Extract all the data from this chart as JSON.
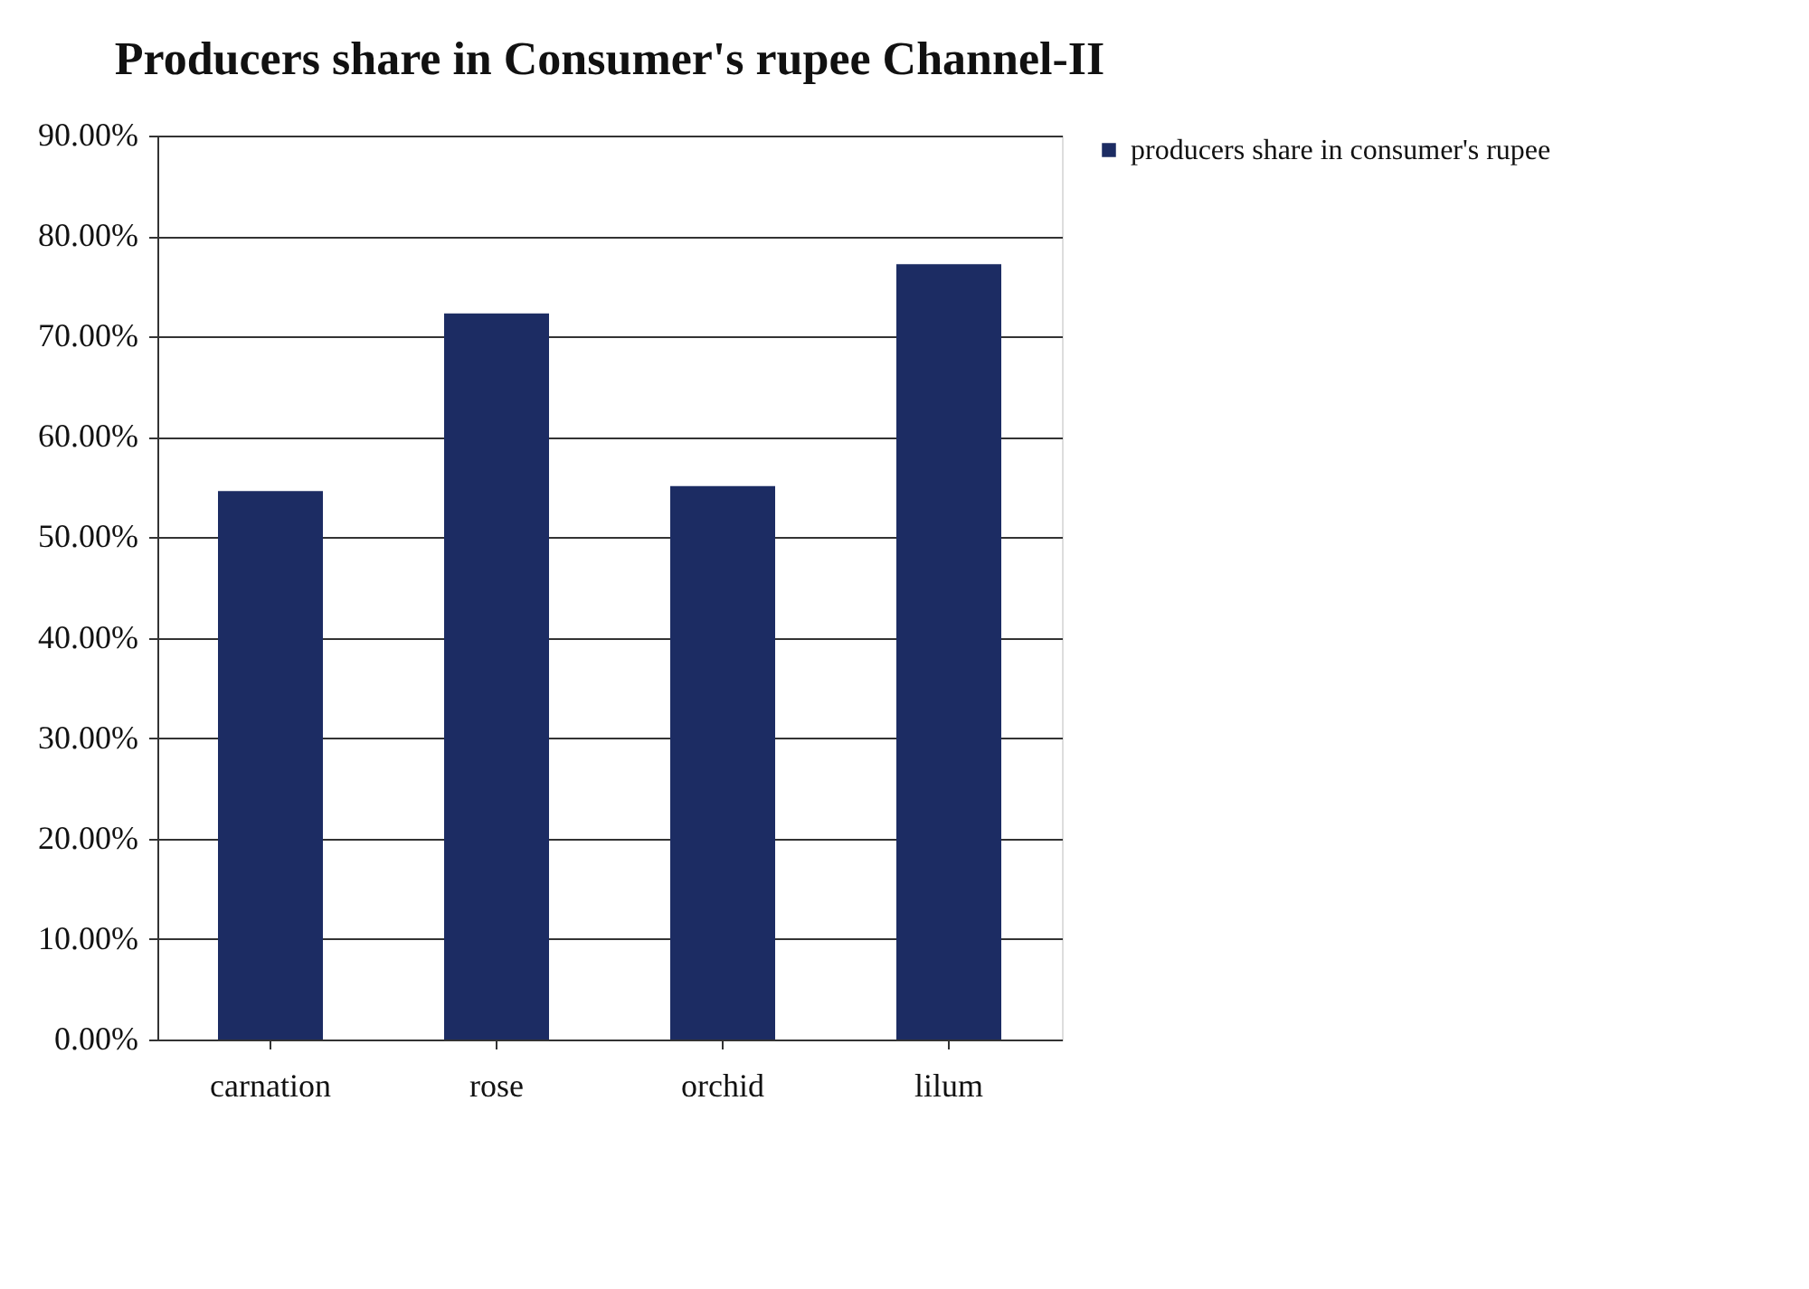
{
  "chart_data": {
    "type": "bar",
    "title": "Producers share in Consumer's rupee Channel-II",
    "categories": [
      "carnation",
      "rose",
      "orchid",
      "lilum"
    ],
    "series": [
      {
        "name": "producers share in consumer's rupee",
        "color": "#1c2c63",
        "values": [
          54.6,
          72.3,
          55.1,
          77.2
        ]
      }
    ],
    "ylim": [
      0,
      90
    ],
    "yticks": [
      {
        "value": 0,
        "label": "0.00%"
      },
      {
        "value": 10,
        "label": "10.00%"
      },
      {
        "value": 20,
        "label": "20.00%"
      },
      {
        "value": 30,
        "label": "30.00%"
      },
      {
        "value": 40,
        "label": "40.00%"
      },
      {
        "value": 50,
        "label": "50.00%"
      },
      {
        "value": 60,
        "label": "60.00%"
      },
      {
        "value": 70,
        "label": "70.00%"
      },
      {
        "value": 80,
        "label": "80.00%"
      },
      {
        "value": 90,
        "label": "90.00%"
      }
    ],
    "grid": "y",
    "legend": "right"
  }
}
